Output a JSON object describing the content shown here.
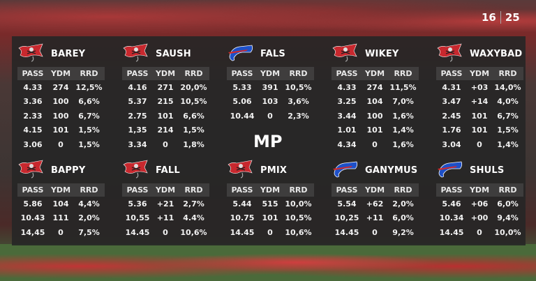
{
  "score": {
    "home": "16",
    "away": "25"
  },
  "center_label": "MP",
  "columns": [
    "PASS",
    "YDM",
    "RRD"
  ],
  "colors": {
    "bucs": "#c8282e",
    "bills": "#1e50c8"
  },
  "players": [
    {
      "name": "BAREY",
      "team_icon": "buccaneers-flag-icon",
      "rows": [
        [
          "4.33",
          "274",
          "12,5%"
        ],
        [
          "3.36",
          "100",
          "6,6%"
        ],
        [
          "2.33",
          "100",
          "6,7%"
        ],
        [
          "4.15",
          "101",
          "1,5%"
        ],
        [
          "3.06",
          "0",
          "1,5%"
        ]
      ]
    },
    {
      "name": "SAUSH",
      "team_icon": "buccaneers-flag-icon",
      "rows": [
        [
          "4.16",
          "271",
          "20,0%"
        ],
        [
          "5.37",
          "215",
          "10,5%"
        ],
        [
          "2.75",
          "101",
          "6,6%"
        ],
        [
          "1,35",
          "214",
          "1,5%"
        ],
        [
          "3.34",
          "0",
          "1,8%"
        ]
      ]
    },
    {
      "name": "FALS",
      "team_icon": "bills-buffalo-icon",
      "rows": [
        [
          "5.33",
          "391",
          "10,5%"
        ],
        [
          "5.06",
          "103",
          "3,6%"
        ],
        [
          "10.44",
          "0",
          "2,3%"
        ]
      ]
    },
    {
      "name": "WIKEY",
      "team_icon": "buccaneers-flag-icon",
      "rows": [
        [
          "4.33",
          "274",
          "11,5%"
        ],
        [
          "3.25",
          "104",
          "7,0%"
        ],
        [
          "3.44",
          "100",
          "1,6%"
        ],
        [
          "1.01",
          "101",
          "1,4%"
        ],
        [
          "4.34",
          "0",
          "1,6%"
        ]
      ]
    },
    {
      "name": "WAXYBAD",
      "team_icon": "buccaneers-flag-icon",
      "rows": [
        [
          "4.31",
          "+03",
          "14,0%"
        ],
        [
          "3.47",
          "+14",
          "4,0%"
        ],
        [
          "2.45",
          "101",
          "6,7%"
        ],
        [
          "1.76",
          "101",
          "1,5%"
        ],
        [
          "3.04",
          "0",
          "1,4%"
        ]
      ]
    },
    {
      "name": "BAPPY",
      "team_icon": "buccaneers-flag-icon",
      "rows": [
        [
          "5.86",
          "104",
          "4,4%"
        ],
        [
          "10.43",
          "111",
          "2,0%"
        ],
        [
          "14,45",
          "0",
          "7,5%"
        ]
      ]
    },
    {
      "name": "FALL",
      "team_icon": "buccaneers-flag-icon",
      "rows": [
        [
          "5.36",
          "+21",
          "2,7%"
        ],
        [
          "10,55",
          "+11",
          "4.4%"
        ],
        [
          "14.45",
          "0",
          "10,6%"
        ]
      ]
    },
    {
      "name": "PMIX",
      "team_icon": "buccaneers-flag-icon",
      "rows": [
        [
          "5.44",
          "515",
          "10,0%"
        ],
        [
          "10.75",
          "101",
          "10,5%"
        ],
        [
          "14.45",
          "0",
          "10,6%"
        ]
      ]
    },
    {
      "name": "GANYMUS",
      "team_icon": "bills-buffalo-icon",
      "rows": [
        [
          "5.54",
          "+62",
          "2,0%"
        ],
        [
          "10,25",
          "+11",
          "6,0%"
        ],
        [
          "14.45",
          "0",
          "9,2%"
        ]
      ]
    },
    {
      "name": "SHULS",
      "team_icon": "bills-buffalo-icon",
      "rows": [
        [
          "5.46",
          "+06",
          "6,0%"
        ],
        [
          "10.34",
          "+00",
          "9,4%"
        ],
        [
          "14.45",
          "0",
          "10,0%"
        ]
      ]
    }
  ]
}
